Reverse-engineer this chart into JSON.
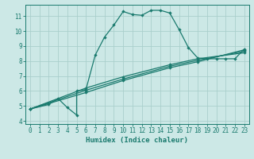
{
  "title": "",
  "xlabel": "Humidex (Indice chaleur)",
  "bg_color": "#cce8e6",
  "line_color": "#1a7a6e",
  "grid_color": "#aacfcc",
  "xlim": [
    -0.5,
    23.5
  ],
  "ylim": [
    3.8,
    11.75
  ],
  "xticks": [
    0,
    1,
    2,
    3,
    4,
    5,
    6,
    7,
    8,
    9,
    10,
    11,
    12,
    13,
    14,
    15,
    16,
    17,
    18,
    19,
    20,
    21,
    22,
    23
  ],
  "yticks": [
    4,
    5,
    6,
    7,
    8,
    9,
    10,
    11
  ],
  "series1_x": [
    0,
    2,
    3,
    4,
    5,
    5,
    6,
    7,
    8,
    9,
    10,
    11,
    12,
    13,
    14,
    15,
    16,
    17,
    18,
    19,
    20,
    21,
    22,
    23
  ],
  "series1_y": [
    4.8,
    5.1,
    5.5,
    4.9,
    4.4,
    6.0,
    6.1,
    8.4,
    9.6,
    10.4,
    11.3,
    11.1,
    11.05,
    11.38,
    11.38,
    11.2,
    10.1,
    8.9,
    8.2,
    8.15,
    8.15,
    8.15,
    8.15,
    8.8
  ],
  "series2_x": [
    0,
    6,
    10,
    15,
    18,
    23
  ],
  "series2_y": [
    4.8,
    5.9,
    6.7,
    7.55,
    7.95,
    8.75
  ],
  "series3_x": [
    0,
    6,
    10,
    15,
    18,
    23
  ],
  "series3_y": [
    4.8,
    6.05,
    6.8,
    7.65,
    8.05,
    8.65
  ],
  "series4_x": [
    0,
    6,
    10,
    15,
    18,
    23
  ],
  "series4_y": [
    4.8,
    6.2,
    6.95,
    7.75,
    8.15,
    8.55
  ],
  "lw": 0.9,
  "ms": 2.2,
  "tick_fontsize": 5.5,
  "xlabel_fontsize": 6.5
}
